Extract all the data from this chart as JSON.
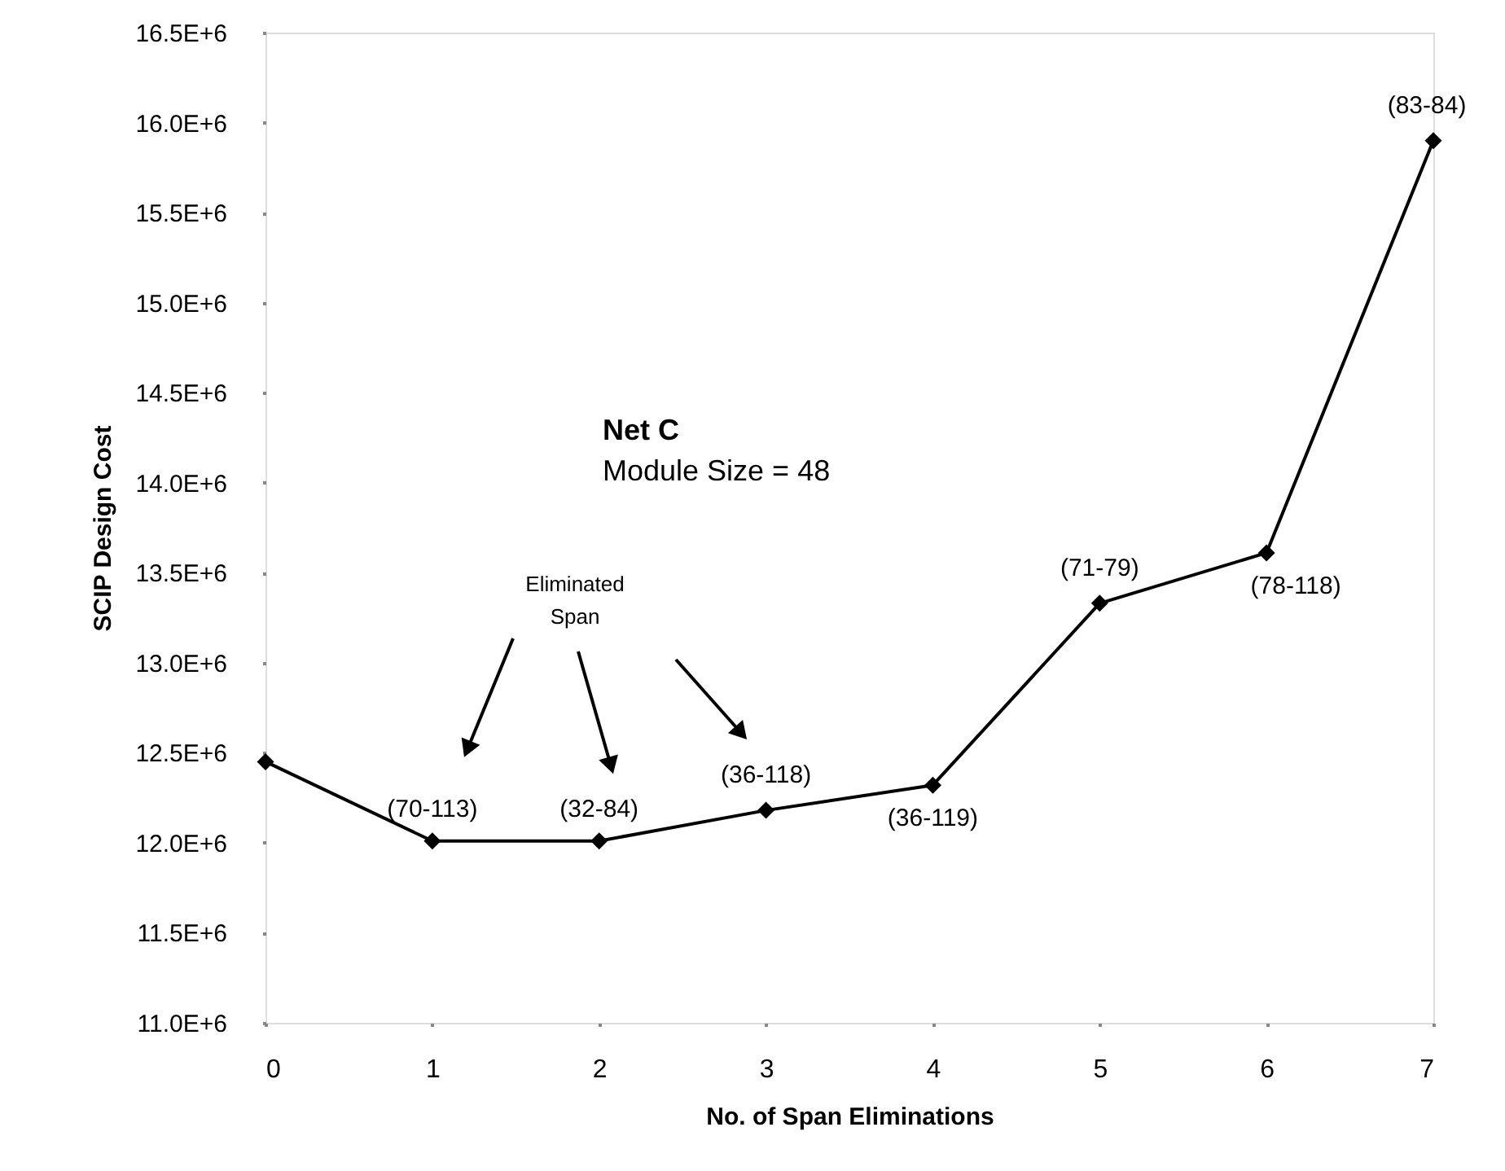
{
  "chart_data": {
    "type": "line",
    "xlabel": "No. of Span Eliminations",
    "ylabel": "SCIP Design Cost",
    "x": [
      0,
      1,
      2,
      3,
      4,
      5,
      6,
      7
    ],
    "series": [
      {
        "color": "#000000",
        "values": [
          12450000,
          12010000,
          12010000,
          12180000,
          12320000,
          13330000,
          13610000,
          15900000
        ]
      }
    ],
    "marker": "diamond",
    "line_style": "solid",
    "grid": false,
    "xlim": [
      0,
      7
    ],
    "xticks": [
      0,
      1,
      2,
      3,
      4,
      5,
      6,
      7
    ],
    "ylim": [
      11000000,
      16500000
    ],
    "yticks": [
      {
        "value": 11000000,
        "label": "11.0E+6"
      },
      {
        "value": 11500000,
        "label": "11.5E+6"
      },
      {
        "value": 12000000,
        "label": "12.0E+6"
      },
      {
        "value": 12500000,
        "label": "12.5E+6"
      },
      {
        "value": 13000000,
        "label": "13.0E+6"
      },
      {
        "value": 13500000,
        "label": "13.5E+6"
      },
      {
        "value": 14000000,
        "label": "14.0E+6"
      },
      {
        "value": 14500000,
        "label": "14.5E+6"
      },
      {
        "value": 15000000,
        "label": "15.0E+6"
      },
      {
        "value": 15500000,
        "label": "15.5E+6"
      },
      {
        "value": 16000000,
        "label": "16.0E+6"
      },
      {
        "value": 16500000,
        "label": "16.5E+6"
      }
    ],
    "annotations": [
      "Net C",
      "Module Size = 48",
      "Eliminated Span",
      {
        "text": "(70-113)",
        "x": 1,
        "y": 12010000
      },
      {
        "text": "(32-84)",
        "x": 2,
        "y": 12010000
      },
      {
        "text": "(36-118)",
        "x": 3,
        "y": 12180000
      },
      {
        "text": "(36-119)",
        "x": 4,
        "y": 12320000
      },
      {
        "text": "(71-79)",
        "x": 5,
        "y": 13330000
      },
      {
        "text": "(78-118)",
        "x": 6,
        "y": 13610000
      },
      {
        "text": "(83-84)",
        "x": 7,
        "y": 15900000
      }
    ]
  }
}
